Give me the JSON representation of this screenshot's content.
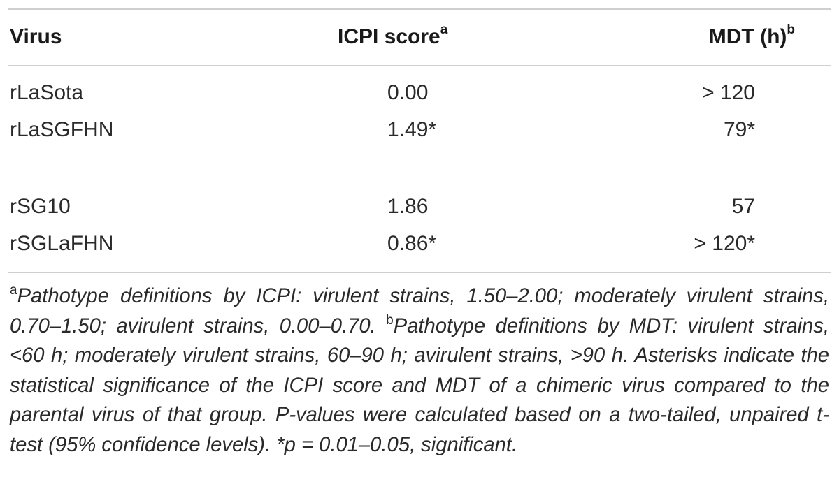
{
  "table": {
    "headers": {
      "virus": "Virus",
      "icpi": "ICPI score",
      "icpi_sup": "a",
      "mdt": "MDT (h)",
      "mdt_sup": "b"
    },
    "rows": [
      {
        "virus": "rLaSota",
        "icpi": "0.00",
        "mdt": "> 120"
      },
      {
        "virus": "rLaSGFHN",
        "icpi": "1.49*",
        "mdt": "79*"
      },
      {
        "virus": "rSG10",
        "icpi": "1.86",
        "mdt": "57"
      },
      {
        "virus": "rSGLaFHN",
        "icpi": "0.86*",
        "mdt": "> 120*"
      }
    ]
  },
  "footnote": {
    "sup_a": "a",
    "text_a": "Pathotype definitions by ICPI: virulent strains, 1.50–2.00; moderately virulent strains, 0.70–1.50; avirulent strains, 0.00–0.70. ",
    "sup_b": "b",
    "text_b": "Pathotype definitions by MDT: virulent strains, <60 h; moderately virulent strains, 60–90 h; avirulent strains, >90 h. Asterisks indicate the statistical significance of the ICPI score and MDT of a chimeric virus compared to the parental virus of that group. P-values were calculated based on a two-tailed, unpaired t-test (95% confidence levels). *p = 0.01–0.05, significant."
  }
}
